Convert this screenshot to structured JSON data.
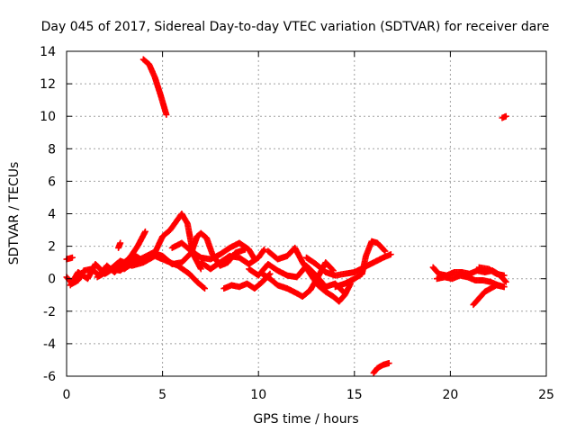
{
  "chart_data": {
    "type": "scatter",
    "title": "Day 045 of 2017, Sidereal Day-to-day VTEC variation (SDTVAR) for receiver dare",
    "xlabel": "GPS time / hours",
    "ylabel": "SDTVAR / TECUs",
    "xlim": [
      0,
      25
    ],
    "ylim": [
      -6,
      14
    ],
    "xticks": [
      0,
      5,
      10,
      15,
      20,
      25
    ],
    "yticks": [
      -6,
      -4,
      -2,
      0,
      2,
      4,
      6,
      8,
      10,
      12,
      14
    ],
    "grid": true,
    "marker": "+",
    "series": [
      {
        "name": "SDTVAR",
        "color": "#ff0000",
        "tracks": [
          [
            [
              4.0,
              13.5
            ],
            [
              4.3,
              13.2
            ],
            [
              4.6,
              12.4
            ],
            [
              4.9,
              11.3
            ],
            [
              5.2,
              10.1
            ]
          ],
          [
            [
              22.7,
              9.9
            ],
            [
              22.9,
              10.0
            ]
          ],
          [
            [
              16.0,
              -5.8
            ],
            [
              16.2,
              -5.5
            ],
            [
              16.5,
              -5.3
            ],
            [
              16.8,
              -5.2
            ]
          ],
          [
            [
              0.0,
              1.2
            ],
            [
              0.3,
              1.3
            ]
          ],
          [
            [
              0.0,
              0.1
            ],
            [
              0.3,
              -0.3
            ],
            [
              0.6,
              -0.1
            ],
            [
              0.9,
              0.5
            ],
            [
              1.3,
              0.6
            ],
            [
              1.7,
              0.2
            ],
            [
              2.1,
              0.8
            ],
            [
              2.5,
              0.4
            ],
            [
              2.9,
              0.9
            ],
            [
              3.3,
              1.3
            ],
            [
              3.7,
              2.0
            ],
            [
              4.1,
              2.9
            ]
          ],
          [
            [
              0.2,
              -0.4
            ],
            [
              0.6,
              0.4
            ],
            [
              1.1,
              0.0
            ],
            [
              1.5,
              0.9
            ],
            [
              2.0,
              0.3
            ],
            [
              2.4,
              0.6
            ],
            [
              2.8,
              0.5
            ],
            [
              3.2,
              0.9
            ],
            [
              3.6,
              1.4
            ],
            [
              4.0,
              1.1
            ],
            [
              4.6,
              1.6
            ],
            [
              5.0,
              2.6
            ],
            [
              5.4,
              3.0
            ],
            [
              5.7,
              3.5
            ],
            [
              6.0,
              4.0
            ],
            [
              6.3,
              3.4
            ],
            [
              6.6,
              1.5
            ],
            [
              7.0,
              0.6
            ]
          ],
          [
            [
              1.6,
              0.1
            ],
            [
              2.2,
              0.5
            ],
            [
              2.8,
              1.1
            ],
            [
              3.4,
              0.8
            ],
            [
              4.0,
              1.0
            ],
            [
              4.6,
              1.4
            ],
            [
              5.2,
              1.1
            ],
            [
              5.8,
              0.8
            ],
            [
              6.4,
              0.3
            ],
            [
              6.8,
              -0.2
            ],
            [
              7.2,
              -0.6
            ]
          ],
          [
            [
              2.7,
              1.9
            ],
            [
              2.8,
              2.2
            ]
          ],
          [
            [
              3.0,
              0.6
            ],
            [
              3.5,
              1.0
            ],
            [
              4.0,
              1.3
            ],
            [
              4.5,
              1.6
            ],
            [
              5.0,
              1.4
            ],
            [
              5.5,
              0.9
            ],
            [
              6.0,
              1.0
            ],
            [
              6.5,
              1.6
            ],
            [
              6.8,
              2.6
            ],
            [
              7.0,
              2.8
            ],
            [
              7.3,
              2.5
            ],
            [
              7.6,
              1.5
            ],
            [
              8.0,
              0.8
            ],
            [
              8.4,
              1.0
            ],
            [
              8.8,
              1.6
            ],
            [
              9.3,
              1.8
            ]
          ],
          [
            [
              5.5,
              1.9
            ],
            [
              6.0,
              2.2
            ],
            [
              6.5,
              1.7
            ],
            [
              7.0,
              1.3
            ],
            [
              7.5,
              1.2
            ],
            [
              8.0,
              1.5
            ],
            [
              8.5,
              1.9
            ],
            [
              9.0,
              2.2
            ],
            [
              9.5,
              1.8
            ],
            [
              9.8,
              1.2
            ]
          ],
          [
            [
              7.0,
              1.0
            ],
            [
              7.5,
              0.6
            ],
            [
              8.0,
              1.0
            ],
            [
              8.5,
              1.4
            ],
            [
              9.0,
              1.3
            ],
            [
              9.5,
              0.9
            ],
            [
              10.0,
              1.3
            ],
            [
              10.3,
              1.8
            ]
          ],
          [
            [
              8.2,
              -0.6
            ],
            [
              8.6,
              -0.4
            ],
            [
              9.0,
              -0.5
            ],
            [
              9.4,
              -0.3
            ],
            [
              9.8,
              -0.6
            ],
            [
              10.2,
              -0.2
            ],
            [
              10.6,
              0.3
            ]
          ],
          [
            [
              9.5,
              0.6
            ],
            [
              10.0,
              0.2
            ],
            [
              10.5,
              0.9
            ],
            [
              11.0,
              0.5
            ],
            [
              11.5,
              0.2
            ],
            [
              12.0,
              0.1
            ],
            [
              12.5,
              0.8
            ],
            [
              13.0,
              0.2
            ],
            [
              13.5,
              -0.5
            ],
            [
              14.0,
              -0.3
            ],
            [
              14.5,
              -0.9
            ]
          ],
          [
            [
              10.2,
              0.3
            ],
            [
              10.6,
              0.0
            ],
            [
              11.0,
              -0.4
            ],
            [
              11.5,
              -0.6
            ],
            [
              12.0,
              -0.9
            ],
            [
              12.3,
              -1.1
            ],
            [
              12.7,
              -0.7
            ],
            [
              13.1,
              0.1
            ],
            [
              13.5,
              1.0
            ],
            [
              13.9,
              0.5
            ]
          ],
          [
            [
              10.5,
              1.7
            ],
            [
              11.0,
              1.2
            ],
            [
              11.5,
              1.4
            ],
            [
              11.9,
              1.9
            ],
            [
              12.3,
              1.0
            ],
            [
              12.7,
              0.3
            ],
            [
              13.1,
              -0.4
            ],
            [
              13.5,
              -0.8
            ],
            [
              13.9,
              -1.1
            ],
            [
              14.2,
              -1.4
            ],
            [
              14.5,
              -1.0
            ],
            [
              14.8,
              -0.3
            ]
          ],
          [
            [
              12.5,
              1.3
            ],
            [
              13.0,
              0.9
            ],
            [
              13.5,
              0.4
            ],
            [
              14.0,
              0.2
            ],
            [
              14.5,
              0.3
            ],
            [
              15.0,
              0.4
            ],
            [
              15.5,
              0.7
            ],
            [
              16.0,
              1.0
            ],
            [
              16.5,
              1.3
            ],
            [
              16.9,
              1.5
            ]
          ],
          [
            [
              14.0,
              -0.5
            ],
            [
              14.5,
              -0.3
            ],
            [
              15.0,
              0.0
            ],
            [
              15.4,
              0.3
            ],
            [
              15.6,
              1.4
            ],
            [
              15.9,
              2.3
            ],
            [
              16.2,
              2.2
            ],
            [
              16.6,
              1.7
            ]
          ],
          [
            [
              19.1,
              0.7
            ],
            [
              19.4,
              0.3
            ],
            [
              19.8,
              0.2
            ],
            [
              20.2,
              0.4
            ],
            [
              20.6,
              0.4
            ],
            [
              21.0,
              0.3
            ],
            [
              21.4,
              0.5
            ],
            [
              21.8,
              0.4
            ],
            [
              22.2,
              0.5
            ],
            [
              22.6,
              0.2
            ],
            [
              22.9,
              -0.2
            ]
          ],
          [
            [
              19.3,
              0.0
            ],
            [
              19.7,
              0.1
            ],
            [
              20.1,
              0.0
            ],
            [
              20.5,
              0.2
            ],
            [
              20.9,
              0.1
            ],
            [
              21.3,
              -0.1
            ],
            [
              21.7,
              -0.1
            ],
            [
              22.1,
              -0.2
            ],
            [
              22.5,
              -0.4
            ],
            [
              22.8,
              -0.5
            ]
          ],
          [
            [
              21.2,
              -1.6
            ],
            [
              21.5,
              -1.2
            ],
            [
              21.8,
              -0.8
            ],
            [
              22.1,
              -0.6
            ],
            [
              22.4,
              -0.4
            ],
            [
              22.8,
              -0.5
            ]
          ],
          [
            [
              21.5,
              0.7
            ],
            [
              22.0,
              0.6
            ],
            [
              22.4,
              0.3
            ],
            [
              22.8,
              0.2
            ]
          ]
        ]
      }
    ]
  }
}
